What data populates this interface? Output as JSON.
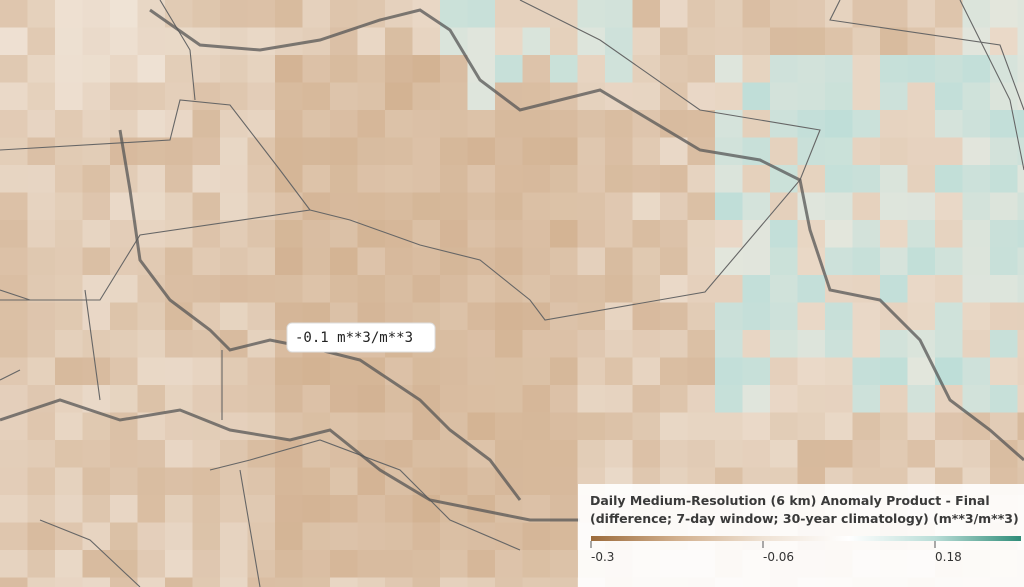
{
  "tooltip": {
    "text": "-0.1 m**3/m**3"
  },
  "legend": {
    "title_lines": [
      "Daily Medium-Resolution (6 km) Anomaly Product - Final",
      "(difference; 7-day window; 30-year climatology) (m**3/m**3)"
    ],
    "colorbar": {
      "range": [
        -0.3,
        0.3
      ],
      "ticks": [
        -0.3,
        -0.06,
        0.18
      ],
      "colors": [
        "#9c6b3c",
        "#d2b08e",
        "#efe2d4",
        "#ffffff",
        "#b9ddd7",
        "#2f8c78"
      ]
    }
  }
}
